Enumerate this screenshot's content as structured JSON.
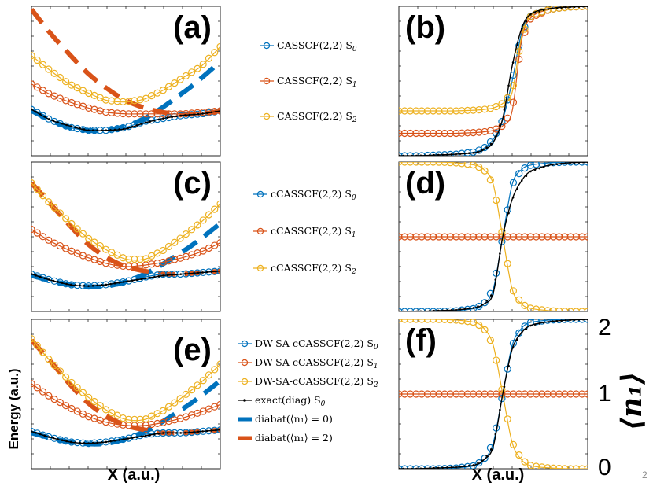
{
  "figure": {
    "x_axis_title": "X (a.u.)",
    "y_axis_title": "Energy (a.u.)",
    "right_axis_title": "⟨n₁⟩",
    "page_number": "2",
    "right_ticks": [
      "2",
      "1",
      "0"
    ]
  },
  "colors": {
    "s0": "#0072BD",
    "s1": "#D95319",
    "s2": "#EDB120",
    "exact": "#000000"
  },
  "legends": {
    "a": [
      {
        "label": "CASSCF(2,2) S",
        "sub": "0",
        "color": "#0072BD",
        "style": "circle-line"
      },
      {
        "label": "CASSCF(2,2) S",
        "sub": "1",
        "color": "#D95319",
        "style": "circle-line"
      },
      {
        "label": "CASSCF(2,2) S",
        "sub": "2",
        "color": "#EDB120",
        "style": "circle-line"
      }
    ],
    "c": [
      {
        "label": "cCASSCF(2,2) S",
        "sub": "0",
        "color": "#0072BD",
        "style": "circle-line"
      },
      {
        "label": "cCASSCF(2,2) S",
        "sub": "1",
        "color": "#D95319",
        "style": "circle-line"
      },
      {
        "label": "cCASSCF(2,2) S",
        "sub": "2",
        "color": "#EDB120",
        "style": "circle-line"
      }
    ],
    "e": [
      {
        "label": "DW-SA-cCASSCF(2,2) S",
        "sub": "0",
        "color": "#0072BD",
        "style": "circle-line"
      },
      {
        "label": "DW-SA-cCASSCF(2,2) S",
        "sub": "1",
        "color": "#D95319",
        "style": "circle-line"
      },
      {
        "label": "DW-SA-cCASSCF(2,2) S",
        "sub": "2",
        "color": "#EDB120",
        "style": "circle-line"
      },
      {
        "label": "exact(diag) S",
        "sub": "0",
        "color": "#000000",
        "style": "dot-line"
      },
      {
        "label": "diabat(⟨n₁⟩ = 0)",
        "sub": "",
        "color": "#0072BD",
        "style": "dash"
      },
      {
        "label": "diabat(⟨n₁⟩ = 2)",
        "sub": "",
        "color": "#D95319",
        "style": "dash"
      }
    ]
  },
  "chart_data": [
    {
      "id": "a",
      "tag": "(a)",
      "type": "line",
      "quantity": "energy",
      "xlim": [
        0,
        1
      ],
      "ylim": [
        0,
        1
      ],
      "series": [
        {
          "name": "CASSCF(2,2) S0",
          "x": [
            0,
            0.1,
            0.2,
            0.3,
            0.4,
            0.5,
            0.6,
            0.7,
            0.8,
            0.9,
            1.0
          ],
          "values": [
            0.31,
            0.24,
            0.19,
            0.17,
            0.17,
            0.19,
            0.23,
            0.25,
            0.27,
            0.28,
            0.3
          ]
        },
        {
          "name": "CASSCF(2,2) S1",
          "x": [
            0,
            0.1,
            0.2,
            0.3,
            0.4,
            0.5,
            0.6,
            0.7,
            0.8,
            0.9,
            1.0
          ],
          "values": [
            0.48,
            0.41,
            0.36,
            0.32,
            0.29,
            0.28,
            0.28,
            0.28,
            0.28,
            0.29,
            0.3
          ]
        },
        {
          "name": "CASSCF(2,2) S2",
          "x": [
            0,
            0.1,
            0.2,
            0.3,
            0.4,
            0.5,
            0.6,
            0.7,
            0.8,
            0.9,
            1.0
          ],
          "values": [
            0.67,
            0.57,
            0.48,
            0.42,
            0.37,
            0.36,
            0.38,
            0.44,
            0.52,
            0.6,
            0.73
          ]
        },
        {
          "name": "exact(diag) S0",
          "x": [
            0,
            0.1,
            0.2,
            0.3,
            0.4,
            0.5,
            0.6,
            0.7,
            0.8,
            0.9,
            1.0
          ],
          "values": [
            0.31,
            0.24,
            0.2,
            0.17,
            0.17,
            0.18,
            0.22,
            0.25,
            0.27,
            0.28,
            0.3
          ]
        },
        {
          "name": "diabat(<n1>=0)",
          "x": [
            0.0,
            0.2,
            0.4,
            0.6,
            0.8,
            0.9,
            1.0
          ],
          "values": [
            0.3,
            0.19,
            0.17,
            0.25,
            0.42,
            0.52,
            0.63
          ]
        },
        {
          "name": "diabat(<n1>=2)",
          "x": [
            0.0,
            0.1,
            0.2,
            0.3,
            0.4,
            0.5,
            0.6,
            0.7,
            0.8,
            0.9,
            1.0
          ],
          "values": [
            0.98,
            0.82,
            0.68,
            0.55,
            0.45,
            0.37,
            0.32,
            0.29,
            0.28,
            0.28,
            0.3
          ]
        }
      ]
    },
    {
      "id": "b",
      "tag": "(b)",
      "type": "line",
      "quantity": "occupation",
      "xlim": [
        0,
        1
      ],
      "ylim": [
        0,
        2
      ],
      "series": [
        {
          "name": "CASSCF(2,2) S0",
          "x": [
            0,
            0.1,
            0.2,
            0.3,
            0.4,
            0.45,
            0.5,
            0.55,
            0.6,
            0.65,
            0.7,
            0.8,
            0.9,
            1.0
          ],
          "values": [
            0.0,
            0.0,
            0.01,
            0.02,
            0.05,
            0.1,
            0.22,
            0.48,
            1.0,
            1.65,
            1.88,
            1.96,
            1.99,
            2.0
          ]
        },
        {
          "name": "CASSCF(2,2) S1",
          "x": [
            0,
            0.1,
            0.2,
            0.3,
            0.4,
            0.45,
            0.5,
            0.55,
            0.6,
            0.65,
            0.7,
            0.8,
            0.9,
            1.0
          ],
          "values": [
            0.3,
            0.3,
            0.3,
            0.3,
            0.31,
            0.32,
            0.34,
            0.4,
            0.6,
            1.55,
            1.85,
            1.96,
            1.99,
            2.0
          ]
        },
        {
          "name": "CASSCF(2,2) S2",
          "x": [
            0,
            0.1,
            0.2,
            0.3,
            0.4,
            0.45,
            0.5,
            0.55,
            0.6,
            0.65,
            0.7,
            0.8,
            0.9,
            1.0
          ],
          "values": [
            0.6,
            0.6,
            0.6,
            0.6,
            0.61,
            0.62,
            0.64,
            0.7,
            0.85,
            1.6,
            1.88,
            1.96,
            1.99,
            2.0
          ]
        },
        {
          "name": "exact(diag) S0",
          "x": [
            0,
            0.1,
            0.2,
            0.3,
            0.4,
            0.45,
            0.5,
            0.55,
            0.6,
            0.65,
            0.7,
            0.8,
            0.9,
            1.0
          ],
          "values": [
            0.0,
            0.0,
            0.01,
            0.02,
            0.04,
            0.08,
            0.18,
            0.5,
            1.2,
            1.7,
            1.9,
            1.97,
            1.99,
            2.0
          ]
        }
      ]
    },
    {
      "id": "c",
      "tag": "(c)",
      "type": "line",
      "quantity": "energy",
      "xlim": [
        0,
        1
      ],
      "ylim": [
        0,
        1
      ],
      "series": [
        {
          "name": "cCASSCF(2,2) S0",
          "x": [
            0,
            0.1,
            0.2,
            0.3,
            0.4,
            0.5,
            0.6,
            0.7,
            0.8,
            0.9,
            1.0
          ],
          "values": [
            0.25,
            0.21,
            0.18,
            0.17,
            0.18,
            0.2,
            0.23,
            0.25,
            0.25,
            0.26,
            0.27
          ]
        },
        {
          "name": "cCASSCF(2,2) S1",
          "x": [
            0,
            0.1,
            0.2,
            0.3,
            0.4,
            0.5,
            0.6,
            0.7,
            0.8,
            0.9,
            1.0
          ],
          "values": [
            0.55,
            0.47,
            0.41,
            0.36,
            0.32,
            0.3,
            0.31,
            0.33,
            0.36,
            0.4,
            0.46
          ]
        },
        {
          "name": "cCASSCF(2,2) S2",
          "x": [
            0,
            0.1,
            0.2,
            0.3,
            0.4,
            0.5,
            0.6,
            0.7,
            0.8,
            0.9,
            1.0
          ],
          "values": [
            0.86,
            0.72,
            0.6,
            0.49,
            0.41,
            0.35,
            0.35,
            0.41,
            0.5,
            0.6,
            0.72
          ]
        },
        {
          "name": "exact(diag) S0",
          "x": [
            0,
            0.1,
            0.2,
            0.3,
            0.4,
            0.5,
            0.6,
            0.7,
            0.8,
            0.9,
            1.0
          ],
          "values": [
            0.25,
            0.21,
            0.18,
            0.17,
            0.18,
            0.2,
            0.22,
            0.24,
            0.25,
            0.26,
            0.27
          ]
        },
        {
          "name": "diabat(<n1>=0)",
          "x": [
            0.0,
            0.2,
            0.4,
            0.6,
            0.8,
            0.9,
            1.0
          ],
          "values": [
            0.24,
            0.18,
            0.17,
            0.25,
            0.4,
            0.49,
            0.59
          ]
        },
        {
          "name": "diabat(<n1>=2)",
          "x": [
            0.0,
            0.1,
            0.2,
            0.3,
            0.4,
            0.5,
            0.6,
            0.7,
            0.8,
            0.9,
            1.0
          ],
          "values": [
            0.86,
            0.72,
            0.58,
            0.45,
            0.36,
            0.3,
            0.27,
            0.25,
            0.25,
            0.26,
            0.27
          ]
        }
      ]
    },
    {
      "id": "d",
      "tag": "(d)",
      "type": "line",
      "quantity": "occupation",
      "xlim": [
        0,
        1
      ],
      "ylim": [
        0,
        2
      ],
      "series": [
        {
          "name": "cCASSCF(2,2) S0",
          "x": [
            0,
            0.1,
            0.2,
            0.3,
            0.4,
            0.45,
            0.5,
            0.55,
            0.6,
            0.65,
            0.7,
            0.8,
            0.9,
            1.0
          ],
          "values": [
            0.0,
            0.0,
            0.0,
            0.01,
            0.04,
            0.1,
            0.3,
            1.0,
            1.7,
            1.9,
            1.96,
            1.99,
            2.0,
            2.0
          ]
        },
        {
          "name": "cCASSCF(2,2) S1",
          "x": [
            0,
            0.1,
            0.2,
            0.3,
            0.4,
            0.45,
            0.5,
            0.55,
            0.6,
            0.65,
            0.7,
            0.8,
            0.9,
            1.0
          ],
          "values": [
            1.0,
            1.0,
            1.0,
            1.0,
            1.0,
            1.0,
            1.0,
            1.0,
            1.0,
            1.0,
            1.0,
            1.0,
            1.0,
            1.0
          ]
        },
        {
          "name": "cCASSCF(2,2) S2",
          "x": [
            0,
            0.1,
            0.2,
            0.3,
            0.4,
            0.45,
            0.5,
            0.55,
            0.6,
            0.65,
            0.7,
            0.8,
            0.9,
            1.0
          ],
          "values": [
            2.0,
            2.0,
            2.0,
            1.99,
            1.96,
            1.9,
            1.7,
            1.0,
            0.3,
            0.1,
            0.04,
            0.01,
            0.0,
            0.0
          ]
        },
        {
          "name": "exact(diag) S0",
          "x": [
            0,
            0.1,
            0.2,
            0.3,
            0.4,
            0.45,
            0.5,
            0.55,
            0.6,
            0.65,
            0.7,
            0.8,
            0.9,
            1.0
          ],
          "values": [
            0.0,
            0.0,
            0.01,
            0.02,
            0.05,
            0.1,
            0.25,
            1.0,
            1.5,
            1.75,
            1.88,
            1.96,
            1.99,
            2.0
          ]
        }
      ]
    },
    {
      "id": "e",
      "tag": "(e)",
      "type": "line",
      "quantity": "energy",
      "xlim": [
        0,
        1
      ],
      "ylim": [
        0,
        1
      ],
      "series": [
        {
          "name": "DW-SA-cCASSCF(2,2) S0",
          "x": [
            0,
            0.1,
            0.2,
            0.3,
            0.4,
            0.5,
            0.6,
            0.7,
            0.8,
            0.9,
            1.0
          ],
          "values": [
            0.25,
            0.21,
            0.18,
            0.17,
            0.18,
            0.2,
            0.23,
            0.24,
            0.24,
            0.25,
            0.26
          ]
        },
        {
          "name": "DW-SA-cCASSCF(2,2) S1",
          "x": [
            0,
            0.1,
            0.2,
            0.3,
            0.4,
            0.5,
            0.6,
            0.7,
            0.8,
            0.9,
            1.0
          ],
          "values": [
            0.57,
            0.48,
            0.41,
            0.35,
            0.31,
            0.29,
            0.29,
            0.31,
            0.34,
            0.38,
            0.43
          ]
        },
        {
          "name": "DW-SA-cCASSCF(2,2) S2",
          "x": [
            0,
            0.1,
            0.2,
            0.3,
            0.4,
            0.5,
            0.6,
            0.7,
            0.8,
            0.9,
            1.0
          ],
          "values": [
            0.87,
            0.72,
            0.59,
            0.48,
            0.39,
            0.33,
            0.33,
            0.39,
            0.48,
            0.58,
            0.7
          ]
        },
        {
          "name": "exact(diag) S0",
          "x": [
            0,
            0.1,
            0.2,
            0.3,
            0.4,
            0.5,
            0.6,
            0.7,
            0.8,
            0.9,
            1.0
          ],
          "values": [
            0.25,
            0.21,
            0.18,
            0.17,
            0.18,
            0.2,
            0.22,
            0.24,
            0.24,
            0.25,
            0.26
          ]
        },
        {
          "name": "diabat(<n1>=0)",
          "x": [
            0.0,
            0.2,
            0.4,
            0.6,
            0.8,
            0.9,
            1.0
          ],
          "values": [
            0.24,
            0.18,
            0.17,
            0.25,
            0.4,
            0.49,
            0.59
          ]
        },
        {
          "name": "diabat(<n1>=2)",
          "x": [
            0.0,
            0.1,
            0.2,
            0.3,
            0.4,
            0.5,
            0.6,
            0.7,
            0.8,
            0.9,
            1.0
          ],
          "values": [
            0.86,
            0.72,
            0.57,
            0.44,
            0.35,
            0.29,
            0.26,
            0.24,
            0.24,
            0.25,
            0.26
          ]
        }
      ]
    },
    {
      "id": "f",
      "tag": "(f)",
      "type": "line",
      "quantity": "occupation",
      "xlim": [
        0,
        1
      ],
      "ylim": [
        0,
        2
      ],
      "series": [
        {
          "name": "DW-SA-cCASSCF(2,2) S0",
          "x": [
            0,
            0.1,
            0.2,
            0.3,
            0.4,
            0.45,
            0.5,
            0.55,
            0.6,
            0.65,
            0.7,
            0.8,
            0.9,
            1.0
          ],
          "values": [
            0.0,
            0.0,
            0.0,
            0.01,
            0.04,
            0.12,
            0.35,
            1.0,
            1.65,
            1.88,
            1.96,
            1.99,
            2.0,
            2.0
          ]
        },
        {
          "name": "DW-SA-cCASSCF(2,2) S1",
          "x": [
            0,
            0.1,
            0.2,
            0.3,
            0.4,
            0.45,
            0.5,
            0.55,
            0.6,
            0.65,
            0.7,
            0.8,
            0.9,
            1.0
          ],
          "values": [
            1.0,
            1.0,
            1.0,
            1.0,
            1.0,
            1.0,
            1.0,
            1.0,
            1.0,
            1.0,
            1.0,
            1.0,
            1.0,
            1.0
          ]
        },
        {
          "name": "DW-SA-cCASSCF(2,2) S2",
          "x": [
            0,
            0.1,
            0.2,
            0.3,
            0.4,
            0.45,
            0.5,
            0.55,
            0.6,
            0.65,
            0.7,
            0.8,
            0.9,
            1.0
          ],
          "values": [
            2.0,
            2.0,
            2.0,
            1.99,
            1.96,
            1.88,
            1.65,
            1.0,
            0.35,
            0.12,
            0.04,
            0.01,
            0.0,
            0.0
          ]
        },
        {
          "name": "exact(diag) S0",
          "x": [
            0,
            0.1,
            0.2,
            0.3,
            0.4,
            0.45,
            0.5,
            0.55,
            0.6,
            0.65,
            0.7,
            0.8,
            0.9,
            1.0
          ],
          "values": [
            0.0,
            0.0,
            0.01,
            0.02,
            0.05,
            0.12,
            0.3,
            1.0,
            1.6,
            1.82,
            1.92,
            1.97,
            1.99,
            2.0
          ]
        }
      ]
    }
  ]
}
